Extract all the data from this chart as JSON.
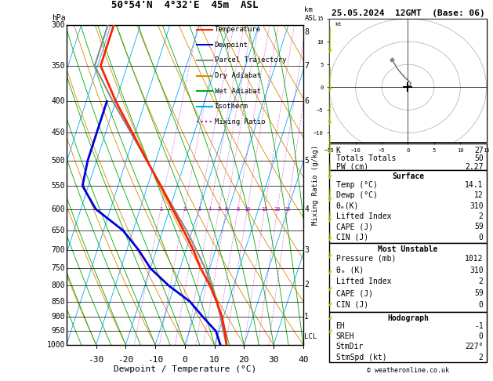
{
  "title_left": "50°54'N  4°32'E  45m  ASL",
  "title_right": "25.05.2024  12GMT  (Base: 06)",
  "xlabel": "Dewpoint / Temperature (°C)",
  "pressure_levels": [
    300,
    350,
    400,
    450,
    500,
    550,
    600,
    650,
    700,
    750,
    800,
    850,
    900,
    950,
    1000
  ],
  "xlim": [
    -40,
    40
  ],
  "temp_profile": {
    "pressure": [
      1000,
      950,
      900,
      850,
      800,
      750,
      700,
      650,
      600,
      550,
      500,
      450,
      400,
      350,
      300
    ],
    "temp": [
      14.1,
      12.0,
      9.5,
      6.0,
      2.0,
      -3.0,
      -7.5,
      -13.0,
      -19.0,
      -25.5,
      -33.0,
      -41.0,
      -50.0,
      -59.0,
      -59.0
    ]
  },
  "dewp_profile": {
    "pressure": [
      1000,
      950,
      900,
      850,
      800,
      750,
      700,
      650,
      600,
      550,
      500,
      450,
      400
    ],
    "dewp": [
      12.0,
      9.0,
      3.0,
      -3.0,
      -12.0,
      -20.0,
      -26.0,
      -33.5,
      -45.0,
      -52.0,
      -53.0,
      -53.0,
      -53.0
    ]
  },
  "parcel_profile": {
    "pressure": [
      1000,
      950,
      900,
      850,
      800,
      750,
      700,
      650,
      600,
      550,
      500,
      450,
      400,
      350,
      300
    ],
    "temp": [
      14.1,
      11.5,
      9.0,
      6.0,
      2.5,
      -1.5,
      -6.5,
      -12.0,
      -18.5,
      -25.5,
      -33.0,
      -41.5,
      -51.0,
      -61.0,
      -61.0
    ]
  },
  "lcl_pressure": 970,
  "temp_color": "#ff2200",
  "dewp_color": "#0000dd",
  "parcel_color": "#888888",
  "dry_adiabat_color": "#dd8800",
  "wet_adiabat_color": "#00aa00",
  "isotherm_color": "#00aaff",
  "mixing_ratio_color": "#cc00cc",
  "info_K": 27,
  "info_TT": 50,
  "info_PW": 2.27,
  "surf_temp": 14.1,
  "surf_dewp": 12,
  "surf_thetae": 310,
  "surf_li": 2,
  "surf_cape": 59,
  "surf_cin": 0,
  "mu_pressure": 1012,
  "mu_thetae": 310,
  "mu_li": 2,
  "mu_cape": 59,
  "mu_cin": 0,
  "hodo_eh": -1,
  "hodo_sreh": 0,
  "hodo_stmdir": 227,
  "hodo_stmspd": 2,
  "mixing_ratio_lines": [
    1,
    2,
    3,
    4,
    5,
    6,
    8,
    10,
    15,
    20,
    25
  ],
  "km_labels": [
    1,
    2,
    3,
    4,
    5,
    6,
    7,
    8
  ],
  "km_pressures": [
    899,
    798,
    700,
    601,
    500,
    400,
    350,
    308
  ],
  "skew_factor": 35.0,
  "legend_items": [
    [
      "Temperature",
      "#ff2200",
      "-"
    ],
    [
      "Dewpoint",
      "#0000dd",
      "-"
    ],
    [
      "Parcel Trajectory",
      "#888888",
      "-"
    ],
    [
      "Dry Adiabat",
      "#dd8800",
      "-"
    ],
    [
      "Wet Adiabat",
      "#00aa00",
      "-"
    ],
    [
      "Isotherm",
      "#00aaff",
      "-"
    ],
    [
      "Mixing Ratio",
      "#cc00cc",
      ":"
    ]
  ]
}
